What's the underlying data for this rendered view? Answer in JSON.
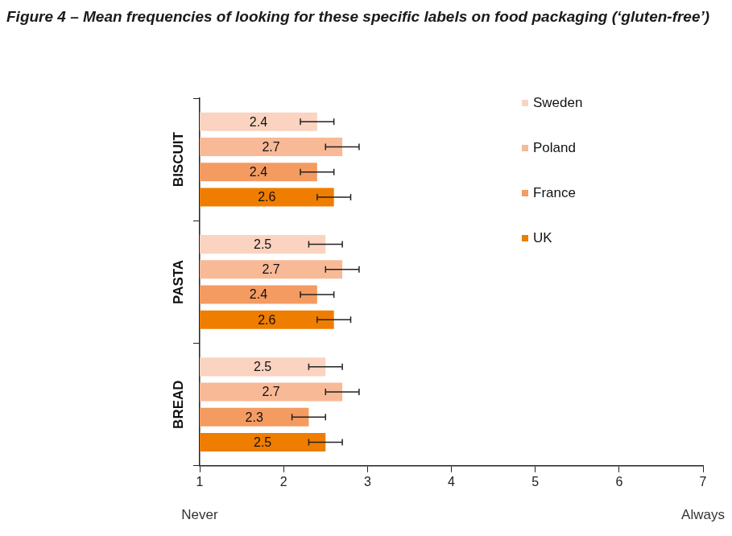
{
  "chart_data": {
    "type": "bar",
    "orientation": "horizontal",
    "title": "Figure 4 – Mean frequencies of looking for these specific labels on food packaging (‘gluten-free’)",
    "categories": [
      "BISCUIT",
      "PASTA",
      "BREAD"
    ],
    "series": [
      {
        "name": "Sweden",
        "color": "#fbd3c1",
        "values": [
          2.4,
          2.5,
          2.5
        ],
        "errors": [
          0.2,
          0.2,
          0.2
        ]
      },
      {
        "name": "Poland",
        "color": "#f8b997",
        "values": [
          2.7,
          2.7,
          2.7
        ],
        "errors": [
          0.2,
          0.2,
          0.2
        ]
      },
      {
        "name": "France",
        "color": "#f49b61",
        "values": [
          2.4,
          2.4,
          2.3
        ],
        "errors": [
          0.2,
          0.2,
          0.2
        ]
      },
      {
        "name": "UK",
        "color": "#ef7d00",
        "values": [
          2.6,
          2.6,
          2.5
        ],
        "errors": [
          0.2,
          0.2,
          0.2
        ]
      }
    ],
    "xlim": [
      1,
      7
    ],
    "xticks": [
      1,
      2,
      3,
      4,
      5,
      6,
      7
    ],
    "annotations": [
      {
        "text": "Never",
        "x": 1
      },
      {
        "text": "Always",
        "x": 7
      }
    ],
    "legend": "upper right",
    "data_labels": true,
    "grid": false
  }
}
